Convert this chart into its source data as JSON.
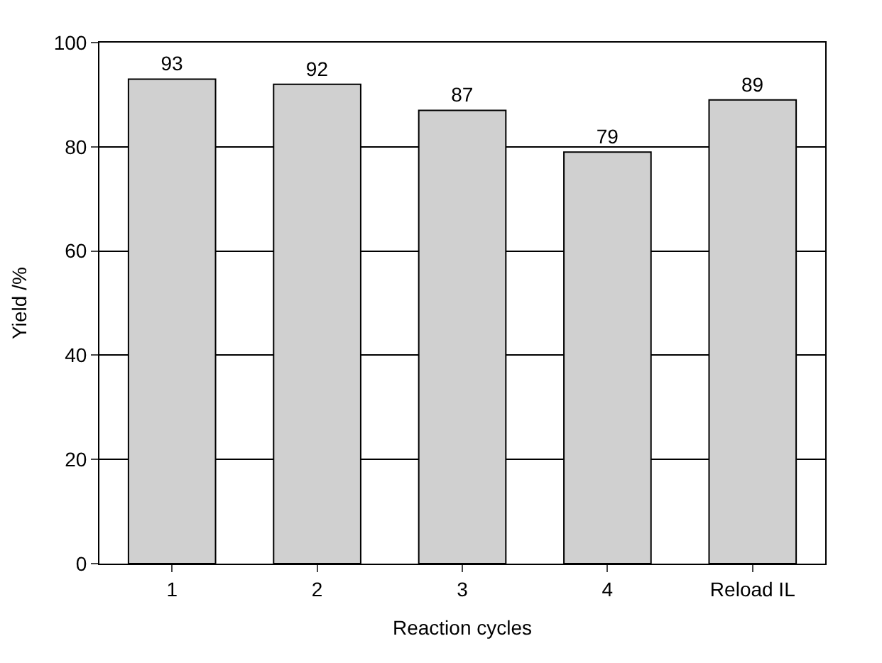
{
  "chart_data": {
    "type": "bar",
    "xlabel": "Reaction cycles",
    "ylabel": "Yield /%",
    "categories": [
      "1",
      "2",
      "3",
      "4",
      "Reload IL"
    ],
    "values": [
      93,
      92,
      87,
      79,
      89
    ],
    "color": "#d0d0d0",
    "ylim": [
      0,
      100
    ],
    "yticks": [
      0,
      20,
      40,
      60,
      80,
      100
    ],
    "grid": "y",
    "data_labels": true
  }
}
